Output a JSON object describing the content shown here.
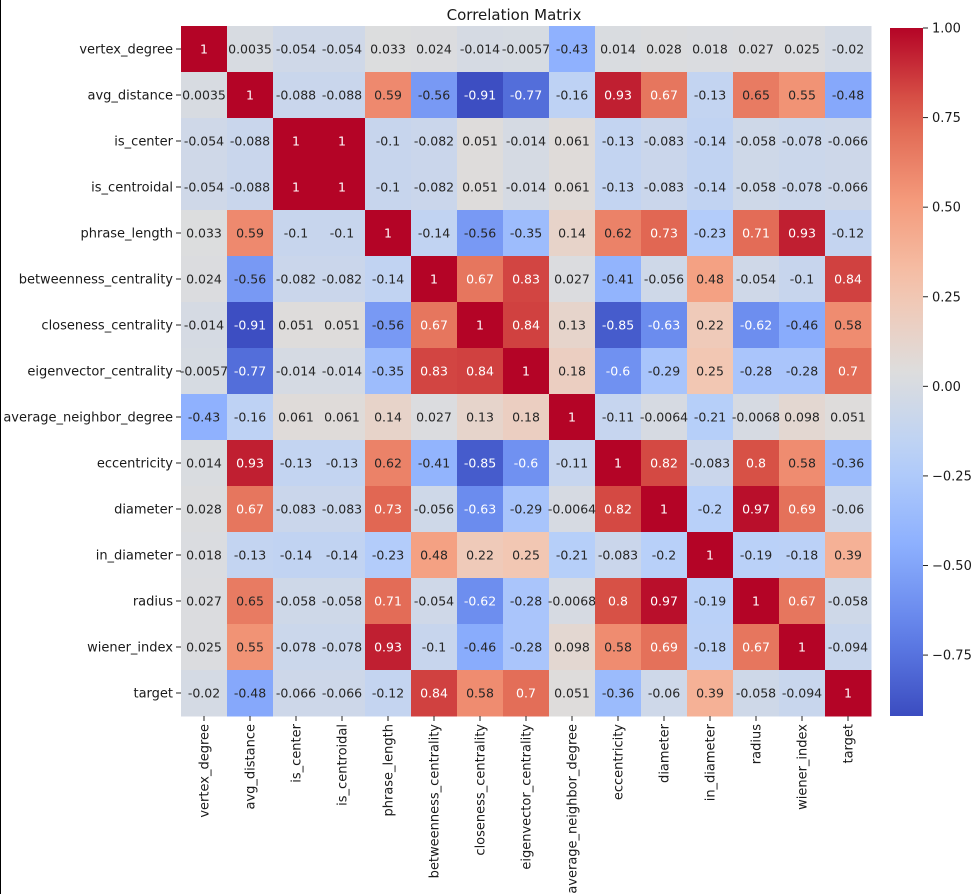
{
  "chart_data": {
    "type": "heatmap",
    "title": "Correlation Matrix",
    "colormap": "coolwarm",
    "vmin": -0.92,
    "vmax": 1.0,
    "row_labels": [
      "vertex_degree",
      "avg_distance",
      "is_center",
      "is_centroidal",
      "phrase_length",
      "betweenness_centrality",
      "closeness_centrality",
      "eigenvector_centrality",
      "average_neighbor_degree",
      "eccentricity",
      "diameter",
      "in_diameter",
      "radius",
      "wiener_index",
      "target"
    ],
    "col_labels": [
      "vertex_degree",
      "avg_distance",
      "is_center",
      "is_centroidal",
      "phrase_length",
      "betweenness_centrality",
      "closeness_centrality",
      "eigenvector_centrality",
      "average_neighbor_degree",
      "eccentricity",
      "diameter",
      "in_diameter",
      "radius",
      "wiener_index",
      "target"
    ],
    "values": [
      [
        1,
        0.0035,
        -0.054,
        -0.054,
        0.033,
        0.024,
        -0.014,
        -0.0057,
        -0.43,
        0.014,
        0.028,
        0.018,
        0.027,
        0.025,
        -0.02
      ],
      [
        0.0035,
        1,
        -0.088,
        -0.088,
        0.59,
        -0.56,
        -0.91,
        -0.77,
        -0.16,
        0.93,
        0.67,
        -0.13,
        0.65,
        0.55,
        -0.48
      ],
      [
        -0.054,
        -0.088,
        1,
        1,
        -0.1,
        -0.082,
        0.051,
        -0.014,
        0.061,
        -0.13,
        -0.083,
        -0.14,
        -0.058,
        -0.078,
        -0.066
      ],
      [
        -0.054,
        -0.088,
        1,
        1,
        -0.1,
        -0.082,
        0.051,
        -0.014,
        0.061,
        -0.13,
        -0.083,
        -0.14,
        -0.058,
        -0.078,
        -0.066
      ],
      [
        0.033,
        0.59,
        -0.1,
        -0.1,
        1,
        -0.14,
        -0.56,
        -0.35,
        0.14,
        0.62,
        0.73,
        -0.23,
        0.71,
        0.93,
        -0.12
      ],
      [
        0.024,
        -0.56,
        -0.082,
        -0.082,
        -0.14,
        1,
        0.67,
        0.83,
        0.027,
        -0.41,
        -0.056,
        0.48,
        -0.054,
        -0.1,
        0.84
      ],
      [
        -0.014,
        -0.91,
        0.051,
        0.051,
        -0.56,
        0.67,
        1,
        0.84,
        0.13,
        -0.85,
        -0.63,
        0.22,
        -0.62,
        -0.46,
        0.58
      ],
      [
        -0.0057,
        -0.77,
        -0.014,
        -0.014,
        -0.35,
        0.83,
        0.84,
        1,
        0.18,
        -0.6,
        -0.29,
        0.25,
        -0.28,
        -0.28,
        0.7
      ],
      [
        -0.43,
        -0.16,
        0.061,
        0.061,
        0.14,
        0.027,
        0.13,
        0.18,
        1,
        -0.11,
        -0.0064,
        -0.21,
        -0.0068,
        0.098,
        0.051
      ],
      [
        0.014,
        0.93,
        -0.13,
        -0.13,
        0.62,
        -0.41,
        -0.85,
        -0.6,
        -0.11,
        1,
        0.82,
        -0.083,
        0.8,
        0.58,
        -0.36
      ],
      [
        0.028,
        0.67,
        -0.083,
        -0.083,
        0.73,
        -0.056,
        -0.63,
        -0.29,
        -0.0064,
        0.82,
        1,
        -0.2,
        0.97,
        0.69,
        -0.06
      ],
      [
        0.018,
        -0.13,
        -0.14,
        -0.14,
        -0.23,
        0.48,
        0.22,
        0.25,
        -0.21,
        -0.083,
        -0.2,
        1,
        -0.19,
        -0.18,
        0.39
      ],
      [
        0.027,
        0.65,
        -0.058,
        -0.058,
        0.71,
        -0.054,
        -0.62,
        -0.28,
        -0.0068,
        0.8,
        0.97,
        -0.19,
        1,
        0.67,
        -0.058
      ],
      [
        0.025,
        0.55,
        -0.078,
        -0.078,
        0.93,
        -0.1,
        -0.46,
        -0.28,
        0.098,
        0.58,
        0.69,
        -0.18,
        0.67,
        1,
        -0.094
      ],
      [
        -0.02,
        -0.48,
        -0.066,
        -0.066,
        -0.12,
        0.84,
        0.58,
        0.7,
        0.051,
        -0.36,
        -0.06,
        0.39,
        -0.058,
        -0.094,
        1
      ]
    ],
    "colorbar_ticks": [
      1.0,
      0.75,
      0.5,
      0.25,
      0.0,
      -0.25,
      -0.5,
      -0.75
    ],
    "colorbar_tick_labels": [
      "1.00",
      "0.75",
      "0.50",
      "0.25",
      "0.00",
      "−0.25",
      "−0.50",
      "−0.75"
    ]
  }
}
